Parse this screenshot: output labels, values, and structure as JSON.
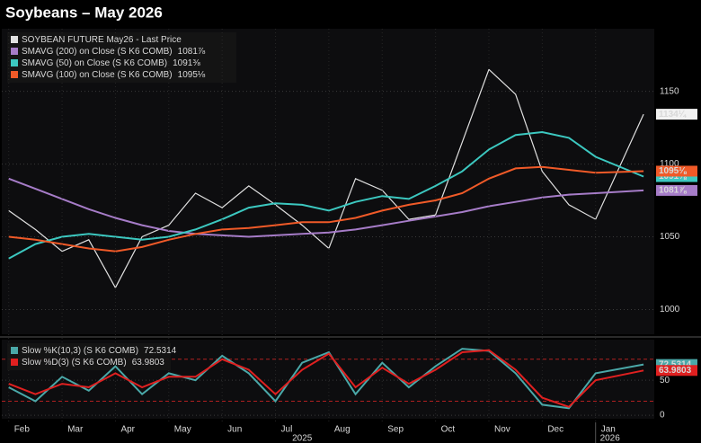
{
  "chart_data": [
    {
      "type": "line",
      "title": "Soybeans – May 2026",
      "x": [
        0,
        0.5,
        1,
        1.5,
        2,
        2.5,
        3,
        3.5,
        4,
        4.5,
        5,
        5.5,
        6,
        6.5,
        7,
        7.5,
        8,
        8.5,
        9,
        9.5,
        10,
        10.5,
        11,
        11.9
      ],
      "xlim": [
        -0.13,
        12.1
      ],
      "ylim": [
        983,
        1193
      ],
      "yticks": [
        1000,
        1050,
        1100,
        1150
      ],
      "grid": true,
      "series": [
        {
          "name": "SOYBEAN FUTURE May26 - Last Price",
          "color": "#e0e0e0",
          "last_label": "1134¼",
          "values": [
            1068,
            1055,
            1040,
            1048,
            1015,
            1050,
            1058,
            1080,
            1070,
            1085,
            1072,
            1058,
            1042,
            1090,
            1082,
            1062,
            1065,
            1115,
            1165,
            1148,
            1095,
            1072,
            1062,
            1134.25
          ]
        },
        {
          "name": "SMAVG (200)  on Close (S K6 COMB)",
          "color": "#a67cc8",
          "last_label": "1081⅞",
          "values": [
            1090,
            1083,
            1076,
            1069,
            1063,
            1058,
            1054,
            1052,
            1051,
            1050,
            1051,
            1052,
            1053,
            1055,
            1058,
            1061,
            1064,
            1067,
            1071,
            1074,
            1077,
            1079,
            1080,
            1081.875
          ]
        },
        {
          "name": "SMAVG (50)  on Close (S K6 COMB)",
          "color": "#3cc8c0",
          "last_label": "1091⅜",
          "values": [
            1035,
            1045,
            1050,
            1052,
            1050,
            1048,
            1050,
            1055,
            1062,
            1070,
            1073,
            1072,
            1068,
            1074,
            1078,
            1076,
            1085,
            1095,
            1110,
            1120,
            1122,
            1118,
            1105,
            1091.375
          ]
        },
        {
          "name": "SMAVG (100)  on Close (S K6 COMB)",
          "color": "#f05a28",
          "last_label": "1095⅛",
          "values": [
            1050,
            1048,
            1045,
            1042,
            1040,
            1043,
            1048,
            1052,
            1055,
            1056,
            1058,
            1060,
            1060,
            1063,
            1068,
            1072,
            1075,
            1080,
            1090,
            1097,
            1098,
            1096,
            1094,
            1095.125
          ]
        }
      ]
    },
    {
      "type": "line",
      "x": [
        0,
        0.5,
        1,
        1.5,
        2,
        2.5,
        3,
        3.5,
        4,
        4.5,
        5,
        5.5,
        6,
        6.5,
        7,
        7.5,
        8,
        8.5,
        9,
        9.5,
        10,
        10.5,
        11,
        11.9
      ],
      "xlim": [
        -0.13,
        12.1
      ],
      "xticks": [
        {
          "value": 0,
          "label": "Feb"
        },
        {
          "value": 1,
          "label": "Mar"
        },
        {
          "value": 2,
          "label": "Apr"
        },
        {
          "value": 3,
          "label": "May"
        },
        {
          "value": 4,
          "label": "Jun"
        },
        {
          "value": 5,
          "label": "Jul"
        },
        {
          "value": 6,
          "label": "Aug"
        },
        {
          "value": 7,
          "label": "Sep"
        },
        {
          "value": 8,
          "label": "Oct"
        },
        {
          "value": 9,
          "label": "Nov"
        },
        {
          "value": 10,
          "label": "Dec"
        },
        {
          "value": 11,
          "label": "Jan"
        }
      ],
      "year_labels": [
        "2025",
        "2026"
      ],
      "ylim": [
        -5,
        108
      ],
      "yticks": [
        0,
        50
      ],
      "ref_lines": [
        20,
        80
      ],
      "series": [
        {
          "name": "Slow %K(10,3) (S K6 COMB)",
          "color": "#4aa8a8",
          "last_label": "72.5314",
          "values": [
            40,
            20,
            55,
            35,
            70,
            30,
            60,
            50,
            85,
            60,
            20,
            75,
            90,
            30,
            75,
            40,
            70,
            95,
            92,
            60,
            15,
            10,
            60,
            72.5314
          ]
        },
        {
          "name": "Slow %D(3) (S K6 COMB)",
          "color": "#e02020",
          "last_label": "63.9803",
          "values": [
            45,
            30,
            45,
            40,
            60,
            40,
            55,
            55,
            80,
            65,
            30,
            65,
            88,
            40,
            68,
            45,
            65,
            90,
            93,
            65,
            25,
            12,
            50,
            63.9803
          ]
        }
      ]
    }
  ]
}
